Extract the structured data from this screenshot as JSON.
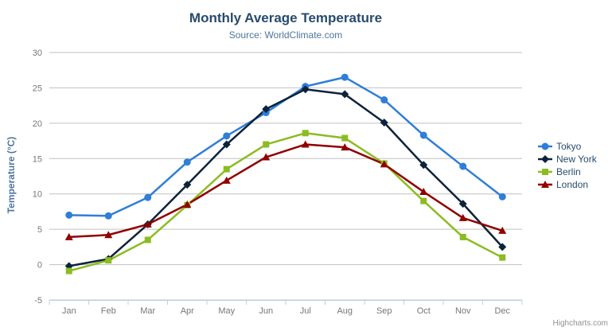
{
  "icons": {
    "context_menu": "hamburger-icon"
  },
  "colors": {
    "title": "#274b6d",
    "subtitle": "#4d759e",
    "axis_title": "#4d759e",
    "tick_label": "#777777",
    "gridline": "#c0c0c0",
    "axis_line": "#c0d0e0",
    "legend_text": "#274b6d",
    "credits": "#909090"
  },
  "chart_data": {
    "type": "line",
    "title": "Monthly Average Temperature",
    "subtitle": "Source: WorldClimate.com",
    "categories": [
      "Jan",
      "Feb",
      "Mar",
      "Apr",
      "May",
      "Jun",
      "Jul",
      "Aug",
      "Sep",
      "Oct",
      "Nov",
      "Dec"
    ],
    "xlabel": "",
    "ylabel": "Temperature (°C)",
    "ylim": [
      -5,
      30
    ],
    "ytick_step": 5,
    "yticks": [
      -5,
      0,
      5,
      10,
      15,
      20,
      25,
      30
    ],
    "grid": true,
    "legend_position": "right",
    "series": [
      {
        "name": "Tokyo",
        "color": "#2f7ed8",
        "marker": "circle",
        "values": [
          7.0,
          6.9,
          9.5,
          14.5,
          18.2,
          21.5,
          25.2,
          26.5,
          23.3,
          18.3,
          13.9,
          9.6
        ]
      },
      {
        "name": "New York",
        "color": "#0d233a",
        "marker": "diamond",
        "values": [
          -0.2,
          0.8,
          5.7,
          11.3,
          17.0,
          22.0,
          24.8,
          24.1,
          20.1,
          14.1,
          8.6,
          2.5
        ]
      },
      {
        "name": "Berlin",
        "color": "#8bbc21",
        "marker": "square",
        "values": [
          -0.9,
          0.6,
          3.5,
          8.4,
          13.5,
          17.0,
          18.6,
          17.9,
          14.3,
          9.0,
          3.9,
          1.0
        ]
      },
      {
        "name": "London",
        "color": "#910000",
        "marker": "triangle",
        "values": [
          3.9,
          4.2,
          5.7,
          8.5,
          11.9,
          15.2,
          17.0,
          16.6,
          14.2,
          10.3,
          6.6,
          4.8
        ]
      }
    ],
    "credits": "Highcharts.com"
  }
}
